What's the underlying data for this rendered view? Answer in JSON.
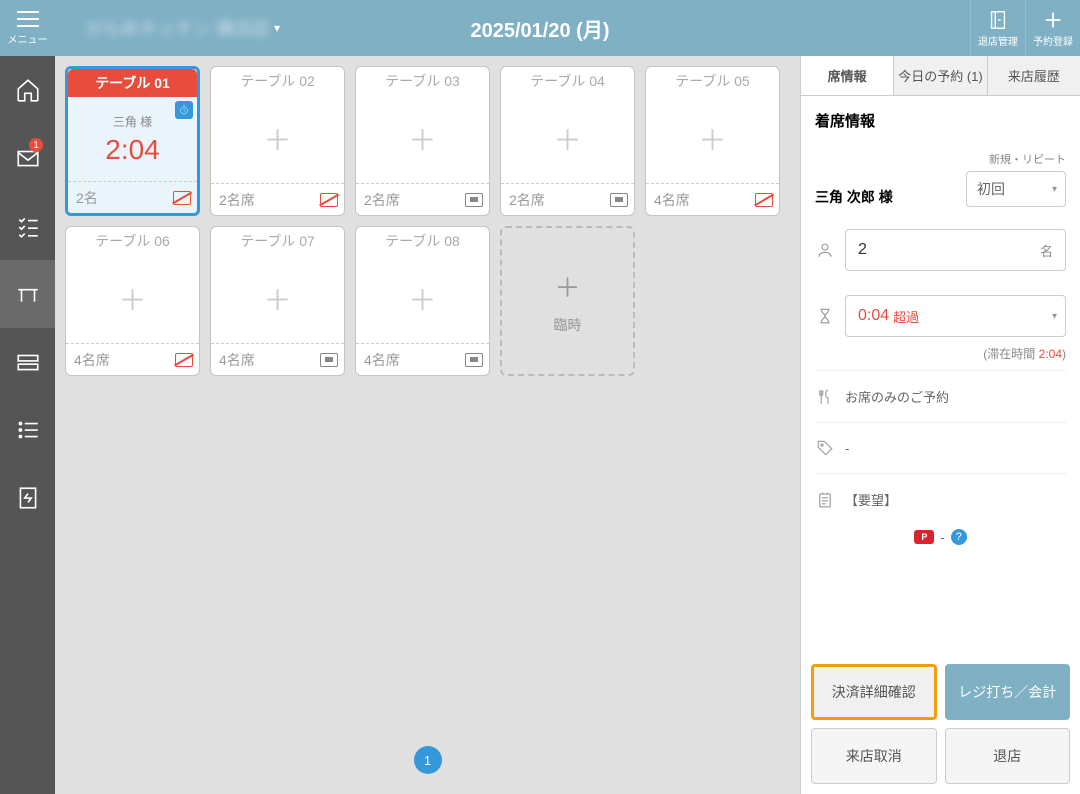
{
  "header": {
    "menu_label": "メニュー",
    "store_name": "かもめキッチン 横浜店",
    "date_title": "2025/01/20 (月)",
    "exit_mgmt_label": "退店管理",
    "reservation_add_label": "予約登録"
  },
  "sidebar": {
    "mail_badge": "1"
  },
  "tables": [
    {
      "name": "テーブル 01",
      "guest": "三角 様",
      "time": "2:04",
      "footer": "2名",
      "selected": true,
      "icon": "red"
    },
    {
      "name": "テーブル 02",
      "footer": "2名席",
      "icon": "red"
    },
    {
      "name": "テーブル 03",
      "footer": "2名席",
      "icon": "gray"
    },
    {
      "name": "テーブル 04",
      "footer": "2名席",
      "icon": "gray"
    },
    {
      "name": "テーブル 05",
      "footer": "4名席",
      "icon": "red"
    },
    {
      "name": "テーブル 06",
      "footer": "4名席",
      "icon": "red"
    },
    {
      "name": "テーブル 07",
      "footer": "4名席",
      "icon": "gray"
    },
    {
      "name": "テーブル 08",
      "footer": "4名席",
      "icon": "gray"
    }
  ],
  "temp_table_label": "臨時",
  "page_num": "1",
  "panel": {
    "tabs": {
      "seat_info": "席情報",
      "today_reservations": "今日の予約 (1)",
      "visit_history": "来店履歴"
    },
    "title": "着席情報",
    "repeat_label": "新規・リピート",
    "customer_name": "三角 次郎 様",
    "repeat_value": "初回",
    "party_size": "2",
    "party_suffix": "名",
    "elapsed_time": "0:04",
    "over_label": "超過",
    "stay_label": "(滞在時間 ",
    "stay_time": "2:04",
    "stay_close": ")",
    "seat_only_label": "お席のみのご予約",
    "tag_value": "-",
    "request_label": "【要望】",
    "points_dash": "-",
    "buttons": {
      "payment_detail": "決済詳細確認",
      "register_checkout": "レジ打ち／会計",
      "cancel_visit": "来店取消",
      "exit_store": "退店"
    }
  }
}
